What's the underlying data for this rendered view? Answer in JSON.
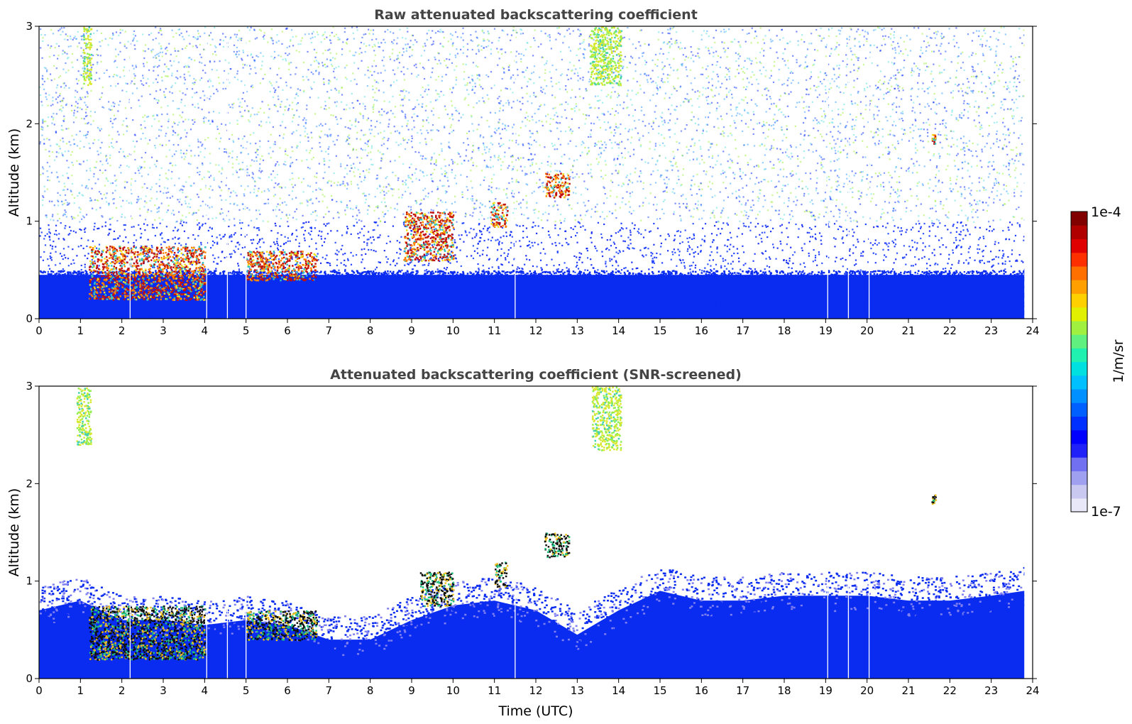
{
  "chart_data": [
    {
      "type": "heatmap",
      "title": "Raw attenuated backscattering coefficient",
      "xlabel": "",
      "ylabel": "Altitude (km)",
      "xlim": [
        0,
        24
      ],
      "ylim": [
        0,
        3
      ],
      "x_ticks": [
        "0",
        "1",
        "2",
        "3",
        "4",
        "5",
        "6",
        "7",
        "8",
        "9",
        "10",
        "11",
        "12",
        "13",
        "14",
        "15",
        "16",
        "17",
        "18",
        "19",
        "20",
        "21",
        "22",
        "23",
        "24"
      ],
      "y_ticks": [
        "0",
        "1",
        "2",
        "3"
      ],
      "data_gaps_utc": [
        2.2,
        4.05,
        4.55,
        5.0,
        11.5,
        19.05,
        19.55,
        20.05
      ],
      "features": [
        {
          "name": "boundary layer aerosol",
          "x": [
            0,
            23.8
          ],
          "y": [
            0,
            0.5
          ],
          "level": "blue"
        },
        {
          "name": "low cloud",
          "x": [
            1.2,
            4.0
          ],
          "y": [
            0.2,
            0.75
          ],
          "level": "red"
        },
        {
          "name": "low cloud",
          "x": [
            5.0,
            6.7
          ],
          "y": [
            0.4,
            0.7
          ],
          "level": "red"
        },
        {
          "name": "cloud",
          "x": [
            8.8,
            10.0
          ],
          "y": [
            0.6,
            1.1
          ],
          "level": "red"
        },
        {
          "name": "cloud",
          "x": [
            10.9,
            11.3
          ],
          "y": [
            0.95,
            1.2
          ],
          "level": "red"
        },
        {
          "name": "cloud",
          "x": [
            12.2,
            12.8
          ],
          "y": [
            1.25,
            1.5
          ],
          "level": "red"
        },
        {
          "name": "high cloud",
          "x": [
            13.3,
            14.05
          ],
          "y": [
            2.4,
            3.0
          ],
          "level": "yellow"
        },
        {
          "name": "high cloud",
          "x": [
            1.05,
            1.25
          ],
          "y": [
            2.4,
            3.0
          ],
          "level": "yellow"
        },
        {
          "name": "small cloud",
          "x": [
            21.55,
            21.65
          ],
          "y": [
            1.8,
            1.9
          ],
          "level": "red"
        }
      ]
    },
    {
      "type": "heatmap",
      "title": "Attenuated backscattering coefficient (SNR-screened)",
      "xlabel": "Time (UTC)",
      "ylabel": "Altitude (km)",
      "xlim": [
        0,
        24
      ],
      "ylim": [
        0,
        3
      ],
      "x_ticks": [
        "0",
        "1",
        "2",
        "3",
        "4",
        "5",
        "6",
        "7",
        "8",
        "9",
        "10",
        "11",
        "12",
        "13",
        "14",
        "15",
        "16",
        "17",
        "18",
        "19",
        "20",
        "21",
        "22",
        "23",
        "24"
      ],
      "y_ticks": [
        "0",
        "1",
        "2",
        "3"
      ],
      "data_gaps_utc": [
        2.2,
        4.05,
        4.55,
        5.0,
        11.5,
        19.05,
        19.55,
        20.05
      ],
      "boundary_layer_top_km": [
        [
          0,
          0.85
        ],
        [
          1,
          0.95
        ],
        [
          2,
          0.75
        ],
        [
          3,
          0.75
        ],
        [
          4,
          0.7
        ],
        [
          5,
          0.75
        ],
        [
          6,
          0.7
        ],
        [
          7,
          0.55
        ],
        [
          8,
          0.55
        ],
        [
          9,
          0.75
        ],
        [
          10,
          0.9
        ],
        [
          11,
          0.95
        ],
        [
          12,
          0.85
        ],
        [
          13,
          0.6
        ],
        [
          14,
          0.85
        ],
        [
          15,
          1.05
        ],
        [
          16,
          0.95
        ],
        [
          17,
          0.95
        ],
        [
          18,
          1.0
        ],
        [
          19,
          1.0
        ],
        [
          20,
          1.0
        ],
        [
          21,
          0.95
        ],
        [
          22,
          0.95
        ],
        [
          23,
          1.0
        ],
        [
          23.8,
          1.05
        ]
      ],
      "features": [
        {
          "name": "low cloud",
          "x": [
            1.2,
            4.0
          ],
          "y": [
            0.2,
            0.75
          ],
          "level": "black"
        },
        {
          "name": "low cloud",
          "x": [
            5.0,
            6.7
          ],
          "y": [
            0.4,
            0.7
          ],
          "level": "black"
        },
        {
          "name": "cloud",
          "x": [
            9.2,
            10.0
          ],
          "y": [
            0.75,
            1.1
          ],
          "level": "black"
        },
        {
          "name": "cloud",
          "x": [
            11.0,
            11.3
          ],
          "y": [
            0.95,
            1.2
          ],
          "level": "black"
        },
        {
          "name": "cloud",
          "x": [
            12.2,
            12.8
          ],
          "y": [
            1.25,
            1.5
          ],
          "level": "black"
        },
        {
          "name": "high cloud",
          "x": [
            13.35,
            14.05
          ],
          "y": [
            2.35,
            3.0
          ],
          "level": "yellow"
        },
        {
          "name": "high cloud",
          "x": [
            0.9,
            1.25
          ],
          "y": [
            2.4,
            3.0
          ],
          "level": "yellow"
        },
        {
          "name": "small cloud",
          "x": [
            21.55,
            21.65
          ],
          "y": [
            1.8,
            1.9
          ],
          "level": "black"
        }
      ]
    }
  ],
  "colorbar": {
    "label": "1/m/sr",
    "max_label": "1e-4",
    "min_label": "1e-7",
    "colors": [
      "#e8e8f8",
      "#c8c8f0",
      "#a0a0f0",
      "#7070f0",
      "#2020f8",
      "#0000ff",
      "#0030ff",
      "#0060ff",
      "#0090ff",
      "#00c0ff",
      "#00e0e0",
      "#20f0b0",
      "#60f080",
      "#a0f040",
      "#e0f000",
      "#ffd000",
      "#ffa000",
      "#ff7000",
      "#ff3000",
      "#e00000",
      "#b00000",
      "#800000"
    ]
  }
}
